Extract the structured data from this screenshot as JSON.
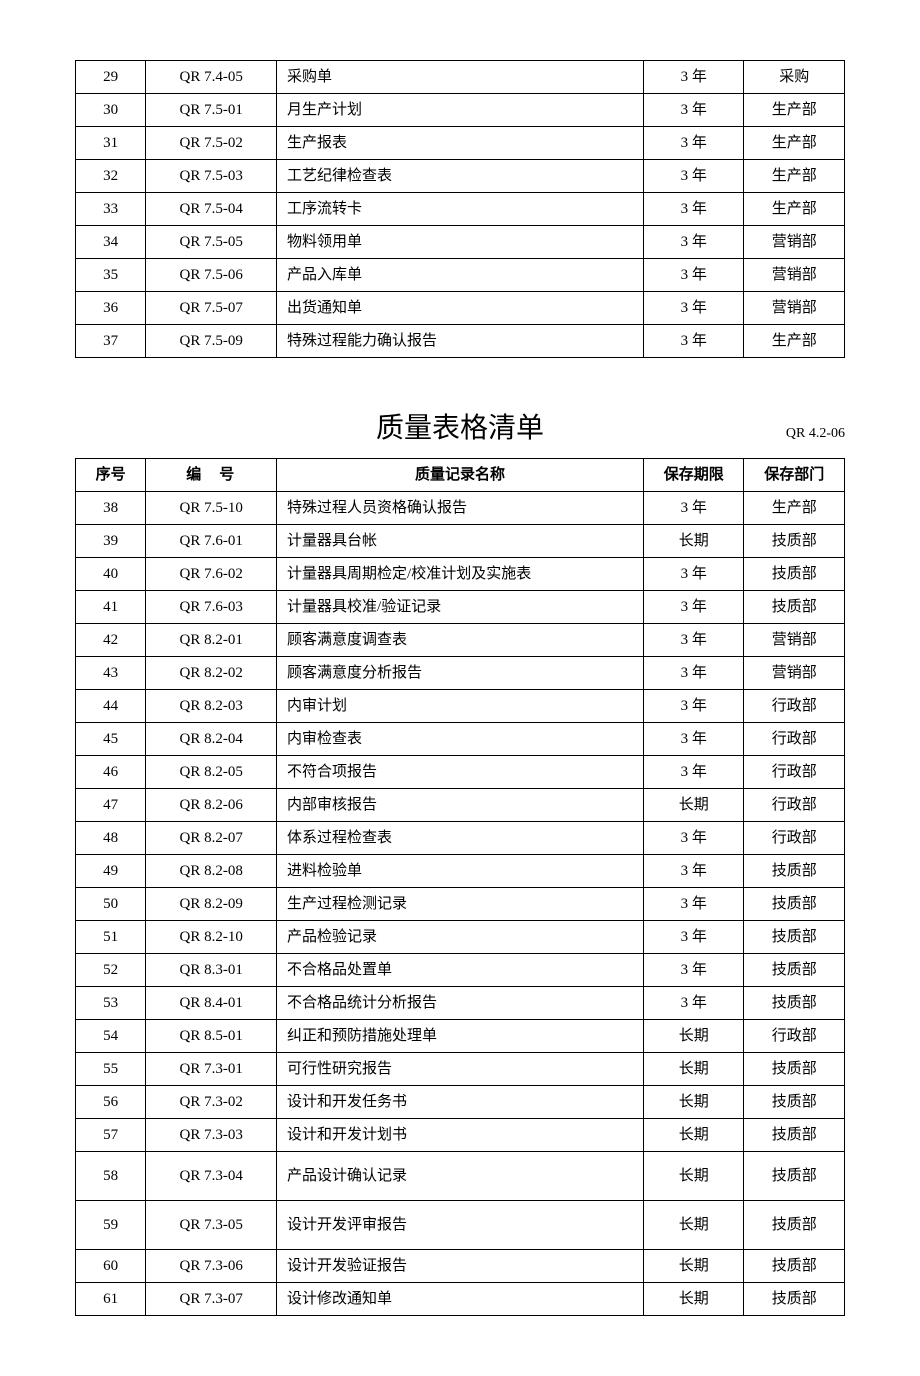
{
  "table1": {
    "rows": [
      {
        "seq": "29",
        "code": "QR 7.4-05",
        "name": "采购单",
        "period": "3 年",
        "dept": "采购"
      },
      {
        "seq": "30",
        "code": "QR 7.5-01",
        "name": "月生产计划",
        "period": "3 年",
        "dept": "生产部"
      },
      {
        "seq": "31",
        "code": "QR 7.5-02",
        "name": "生产报表",
        "period": "3 年",
        "dept": "生产部"
      },
      {
        "seq": "32",
        "code": "QR 7.5-03",
        "name": "工艺纪律检查表",
        "period": "3 年",
        "dept": "生产部"
      },
      {
        "seq": "33",
        "code": "QR 7.5-04",
        "name": "工序流转卡",
        "period": "3 年",
        "dept": "生产部"
      },
      {
        "seq": "34",
        "code": "QR 7.5-05",
        "name": "物料领用单",
        "period": "3 年",
        "dept": "营销部"
      },
      {
        "seq": "35",
        "code": "QR 7.5-06",
        "name": "产品入库单",
        "period": "3 年",
        "dept": "营销部"
      },
      {
        "seq": "36",
        "code": "QR 7.5-07",
        "name": "出货通知单",
        "period": "3 年",
        "dept": "营销部"
      },
      {
        "seq": "37",
        "code": "QR 7.5-09",
        "name": "特殊过程能力确认报告",
        "period": "3 年",
        "dept": "生产部"
      }
    ]
  },
  "section2": {
    "title": "质量表格清单",
    "title_code": "QR 4.2-06",
    "headers": {
      "seq": "序号",
      "code": "编号",
      "name": "质量记录名称",
      "period": "保存期限",
      "dept": "保存部门"
    },
    "rows": [
      {
        "seq": "38",
        "code": "QR 7.5-10",
        "name": "特殊过程人员资格确认报告",
        "period": "3 年",
        "dept": "生产部"
      },
      {
        "seq": "39",
        "code": "QR 7.6-01",
        "name": "计量器具台帐",
        "period": "长期",
        "dept": "技质部"
      },
      {
        "seq": "40",
        "code": "QR 7.6-02",
        "name": "计量器具周期检定/校准计划及实施表",
        "period": "3 年",
        "dept": "技质部"
      },
      {
        "seq": "41",
        "code": "QR 7.6-03",
        "name": "计量器具校准/验证记录",
        "period": "3 年",
        "dept": "技质部"
      },
      {
        "seq": "42",
        "code": "QR 8.2-01",
        "name": "顾客满意度调查表",
        "period": "3 年",
        "dept": "营销部"
      },
      {
        "seq": "43",
        "code": "QR 8.2-02",
        "name": "顾客满意度分析报告",
        "period": "3 年",
        "dept": "营销部"
      },
      {
        "seq": "44",
        "code": "QR 8.2-03",
        "name": "内审计划",
        "period": "3 年",
        "dept": "行政部"
      },
      {
        "seq": "45",
        "code": "QR 8.2-04",
        "name": "内审检查表",
        "period": "3 年",
        "dept": "行政部"
      },
      {
        "seq": "46",
        "code": "QR 8.2-05",
        "name": "不符合项报告",
        "period": "3 年",
        "dept": "行政部"
      },
      {
        "seq": "47",
        "code": "QR 8.2-06",
        "name": "内部审核报告",
        "period": "长期",
        "dept": "行政部"
      },
      {
        "seq": "48",
        "code": "QR 8.2-07",
        "name": "体系过程检查表",
        "period": "3 年",
        "dept": "行政部"
      },
      {
        "seq": "49",
        "code": "QR 8.2-08",
        "name": "进料检验单",
        "period": "3 年",
        "dept": "技质部"
      },
      {
        "seq": "50",
        "code": "QR 8.2-09",
        "name": "生产过程检测记录",
        "period": "3 年",
        "dept": "技质部"
      },
      {
        "seq": "51",
        "code": "QR 8.2-10",
        "name": "产品检验记录",
        "period": "3 年",
        "dept": "技质部"
      },
      {
        "seq": "52",
        "code": "QR 8.3-01",
        "name": "不合格品处置单",
        "period": "3 年",
        "dept": "技质部"
      },
      {
        "seq": "53",
        "code": "QR 8.4-01",
        "name": "不合格品统计分析报告",
        "period": "3 年",
        "dept": "技质部"
      },
      {
        "seq": "54",
        "code": "QR 8.5-01",
        "name": "纠正和预防措施处理单",
        "period": "长期",
        "dept": "行政部"
      },
      {
        "seq": "55",
        "code": "QR 7.3-01",
        "name": "可行性研究报告",
        "period": "长期",
        "dept": "技质部"
      },
      {
        "seq": "56",
        "code": "QR 7.3-02",
        "name": "设计和开发任务书",
        "period": "长期",
        "dept": "技质部"
      },
      {
        "seq": "57",
        "code": "QR 7.3-03",
        "name": "设计和开发计划书",
        "period": "长期",
        "dept": "技质部"
      },
      {
        "seq": "58",
        "code": "QR 7.3-04",
        "name": "产品设计确认记录",
        "period": "长期",
        "dept": "技质部",
        "tall": true
      },
      {
        "seq": "59",
        "code": "QR 7.3-05",
        "name": "设计开发评审报告",
        "period": "长期",
        "dept": "技质部",
        "tall": true
      },
      {
        "seq": "60",
        "code": "QR 7.3-06",
        "name": "设计开发验证报告",
        "period": "长期",
        "dept": "技质部"
      },
      {
        "seq": "61",
        "code": "QR 7.3-07",
        "name": "设计修改通知单",
        "period": "长期",
        "dept": "技质部"
      }
    ]
  }
}
